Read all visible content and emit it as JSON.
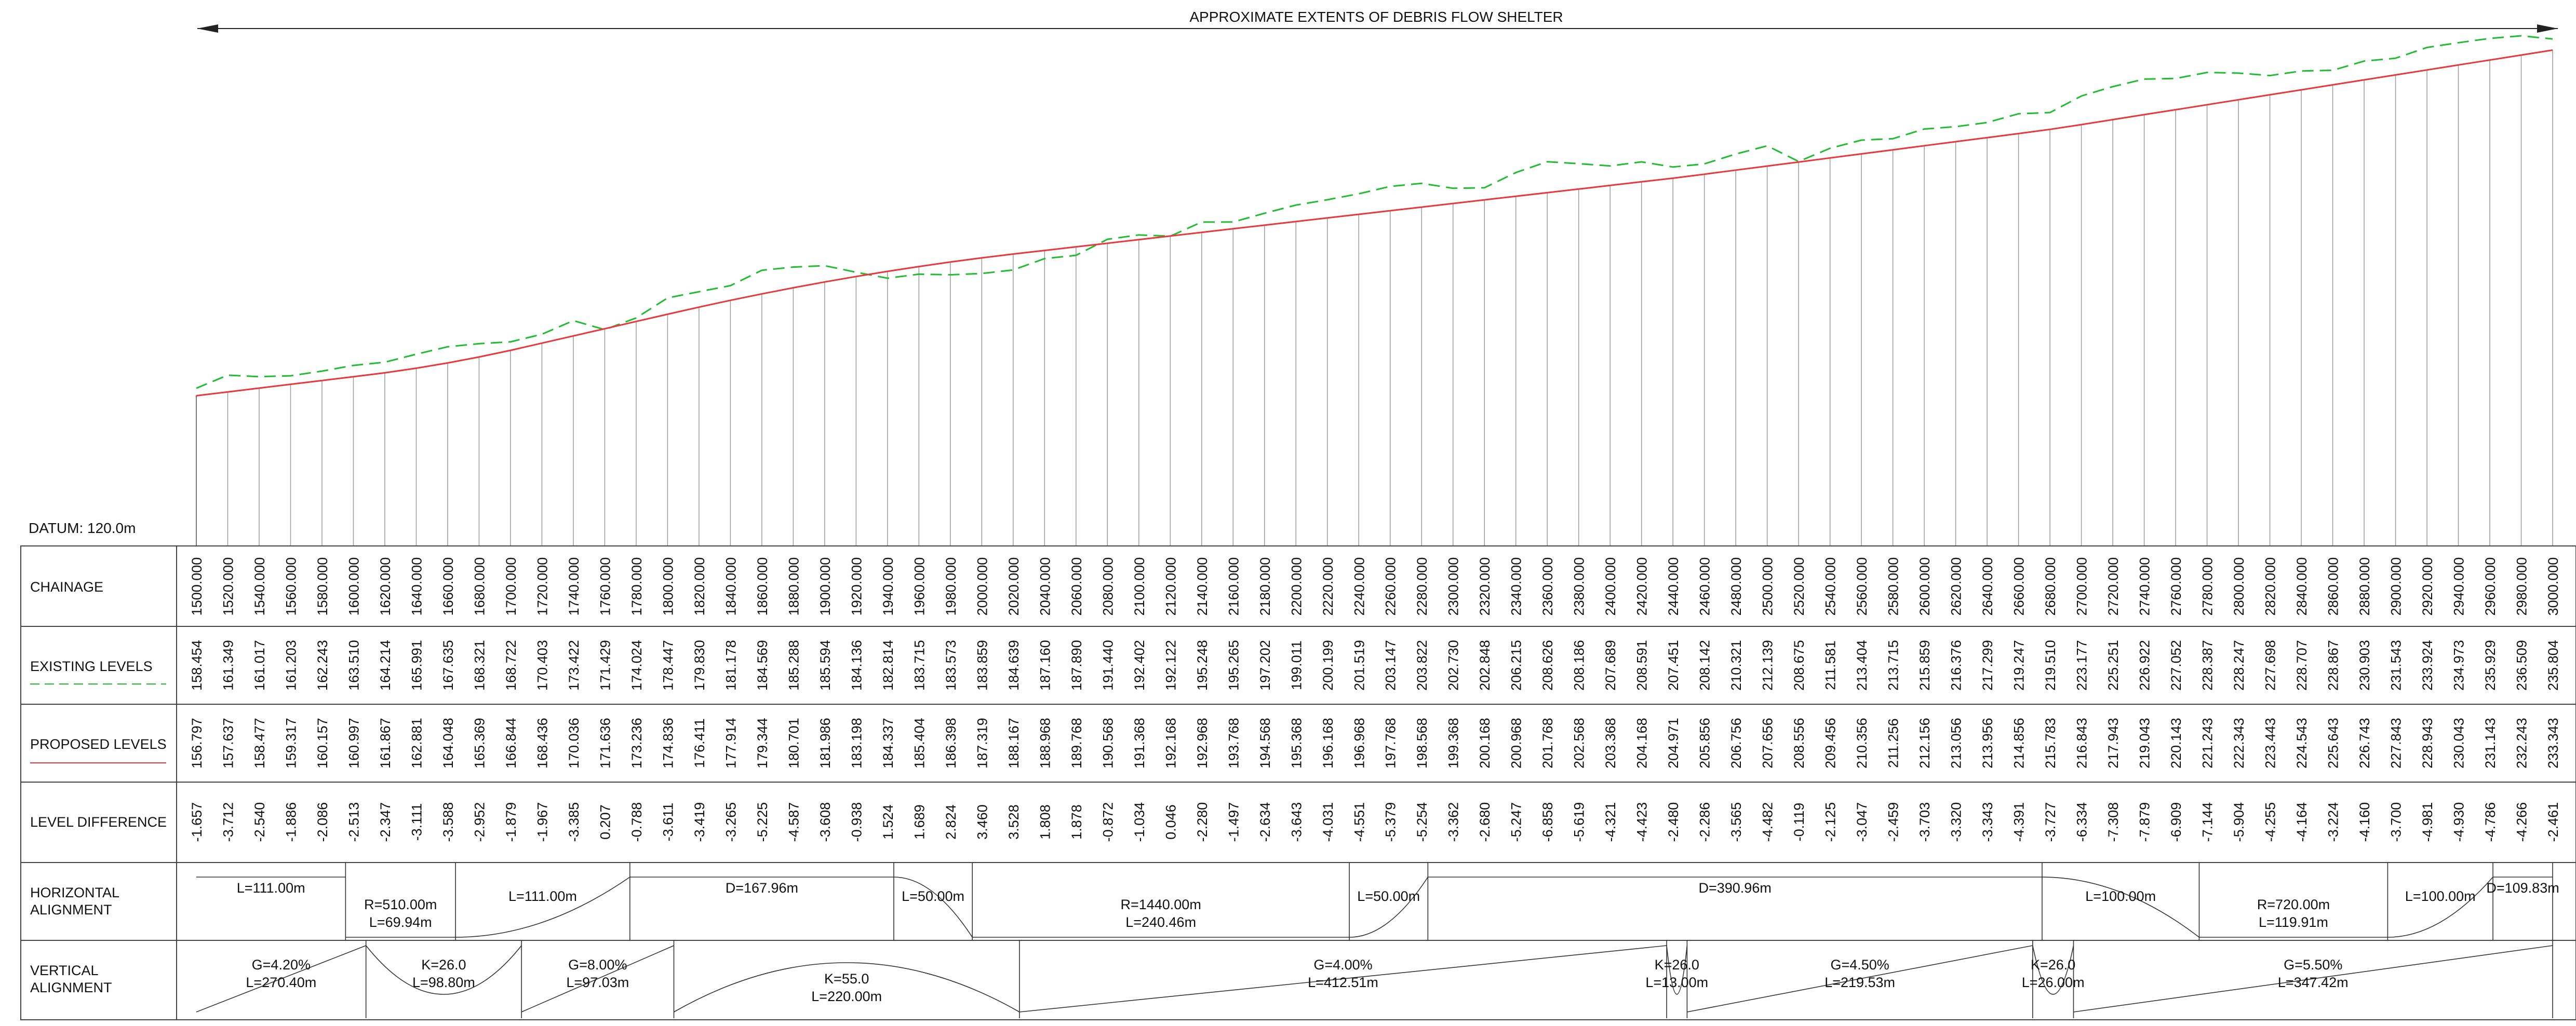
{
  "title": "APPROXIMATE EXTENTS OF DEBRIS FLOW SHELTER",
  "datum": "DATUM: 120.0m",
  "colors": {
    "existing": "#22bb33",
    "proposed": "#e8383d",
    "frame": "#444444"
  },
  "row_labels": {
    "chainage": "CHAINAGE",
    "existing": "EXISTING LEVELS",
    "proposed": "PROPOSED LEVELS",
    "difference": "LEVEL DIFFERENCE",
    "horizontal": [
      "HORIZONTAL",
      "ALIGNMENT"
    ],
    "vertical": [
      "VERTICAL",
      "ALIGNMENT"
    ]
  },
  "chart_data": {
    "type": "line",
    "x_unit": "chainage (m)",
    "y_unit": "level (m)",
    "ylim": [
      120,
      245
    ],
    "chainage": [
      "1500.000",
      "1520.000",
      "1540.000",
      "1560.000",
      "1580.000",
      "1600.000",
      "1620.000",
      "1640.000",
      "1660.000",
      "1680.000",
      "1700.000",
      "1720.000",
      "1740.000",
      "1760.000",
      "1780.000",
      "1800.000",
      "1820.000",
      "1840.000",
      "1860.000",
      "1880.000",
      "1900.000",
      "1920.000",
      "1940.000",
      "1960.000",
      "1980.000",
      "2000.000",
      "2020.000",
      "2040.000",
      "2060.000",
      "2080.000",
      "2100.000",
      "2120.000",
      "2140.000",
      "2160.000",
      "2180.000",
      "2200.000",
      "2220.000",
      "2240.000",
      "2260.000",
      "2280.000",
      "2300.000",
      "2320.000",
      "2340.000",
      "2360.000",
      "2380.000",
      "2400.000",
      "2420.000",
      "2440.000",
      "2460.000",
      "2480.000",
      "2500.000",
      "2520.000",
      "2540.000",
      "2560.000",
      "2580.000",
      "2600.000",
      "2620.000",
      "2640.000",
      "2660.000",
      "2680.000",
      "2700.000",
      "2720.000",
      "2740.000",
      "2760.000",
      "2780.000",
      "2800.000",
      "2820.000",
      "2840.000",
      "2860.000",
      "2880.000",
      "2900.000",
      "2920.000",
      "2940.000",
      "2960.000",
      "2980.000",
      "3000.000"
    ],
    "series": [
      {
        "key": "existing",
        "values": [
          "158.454",
          "161.349",
          "161.017",
          "161.203",
          "162.243",
          "163.510",
          "164.214",
          "165.991",
          "167.635",
          "168.321",
          "168.722",
          "170.403",
          "173.422",
          "171.429",
          "174.024",
          "178.447",
          "179.830",
          "181.178",
          "184.569",
          "185.288",
          "185.594",
          "184.136",
          "182.814",
          "183.715",
          "183.573",
          "183.859",
          "184.639",
          "187.160",
          "187.890",
          "191.440",
          "192.402",
          "192.122",
          "195.248",
          "195.265",
          "197.202",
          "199.011",
          "200.199",
          "201.519",
          "203.147",
          "203.822",
          "202.730",
          "202.848",
          "206.215",
          "208.626",
          "208.186",
          "207.689",
          "208.591",
          "207.451",
          "208.142",
          "210.321",
          "212.139",
          "208.675",
          "211.581",
          "213.404",
          "213.715",
          "215.859",
          "216.376",
          "217.299",
          "219.247",
          "219.510",
          "223.177",
          "225.251",
          "226.922",
          "227.052",
          "228.387",
          "228.247",
          "227.698",
          "228.707",
          "228.867",
          "230.903",
          "231.543",
          "233.924",
          "234.973",
          "235.929",
          "236.509",
          "235.804"
        ]
      },
      {
        "key": "proposed",
        "values": [
          "156.797",
          "157.637",
          "158.477",
          "159.317",
          "160.157",
          "160.997",
          "161.867",
          "162.881",
          "164.048",
          "165.369",
          "166.844",
          "168.436",
          "170.036",
          "171.636",
          "173.236",
          "174.836",
          "176.411",
          "177.914",
          "179.344",
          "180.701",
          "181.986",
          "183.198",
          "184.337",
          "185.404",
          "186.398",
          "187.319",
          "188.167",
          "188.968",
          "189.768",
          "190.568",
          "191.368",
          "192.168",
          "192.968",
          "193.768",
          "194.568",
          "195.368",
          "196.168",
          "196.968",
          "197.768",
          "198.568",
          "199.368",
          "200.168",
          "200.968",
          "201.768",
          "202.568",
          "203.368",
          "204.168",
          "204.971",
          "205.856",
          "206.756",
          "207.656",
          "208.556",
          "209.456",
          "210.356",
          "211.256",
          "212.156",
          "213.056",
          "213.956",
          "214.856",
          "215.783",
          "216.843",
          "217.943",
          "219.043",
          "220.143",
          "221.243",
          "222.343",
          "223.443",
          "224.543",
          "225.643",
          "226.743",
          "227.843",
          "228.943",
          "230.043",
          "231.143",
          "232.243",
          "233.343"
        ]
      }
    ],
    "difference": [
      "-1.657",
      "-3.712",
      "-2.540",
      "-1.886",
      "-2.086",
      "-2.513",
      "-2.347",
      "-3.111",
      "-3.588",
      "-2.952",
      "-1.879",
      "-1.967",
      "-3.385",
      "0.207",
      "-0.788",
      "-3.611",
      "-3.419",
      "-3.265",
      "-5.225",
      "-4.587",
      "-3.608",
      "-0.938",
      "1.524",
      "1.689",
      "2.824",
      "3.460",
      "3.528",
      "1.808",
      "1.878",
      "-0.872",
      "-1.034",
      "0.046",
      "-2.280",
      "-1.497",
      "-2.634",
      "-3.643",
      "-4.031",
      "-4.551",
      "-5.379",
      "-5.254",
      "-3.362",
      "-2.680",
      "-5.247",
      "-6.858",
      "-5.619",
      "-4.321",
      "-4.423",
      "-2.480",
      "-2.286",
      "-3.565",
      "-4.482",
      "-0.119",
      "-2.125",
      "-3.047",
      "-2.459",
      "-3.703",
      "-3.320",
      "-3.343",
      "-4.391",
      "-3.727",
      "-6.334",
      "-7.308",
      "-7.879",
      "-6.909",
      "-7.144",
      "-5.904",
      "-4.255",
      "-4.164",
      "-3.224",
      "-4.160",
      "-3.700",
      "-4.981",
      "-4.930",
      "-4.786",
      "-4.266",
      "-2.461"
    ]
  },
  "horizontal_alignment": [
    {
      "text": [
        "L=111.00m"
      ],
      "from": 1500,
      "to": 1595,
      "shape": "up"
    },
    {
      "text": [
        "R=510.00m",
        "L=69.94m"
      ],
      "from": 1595,
      "to": 1665,
      "shape": "down"
    },
    {
      "text": [
        "L=111.00m"
      ],
      "from": 1665,
      "to": 1776,
      "shape": "trans-up"
    },
    {
      "text": [
        "D=167.96m"
      ],
      "from": 1776,
      "to": 1944,
      "shape": "up"
    },
    {
      "text": [
        "L=50.00m"
      ],
      "from": 1944,
      "to": 1994,
      "shape": "trans-down"
    },
    {
      "text": [
        "R=1440.00m",
        "L=240.46m"
      ],
      "from": 1994,
      "to": 2234,
      "shape": "down"
    },
    {
      "text": [
        "L=50.00m"
      ],
      "from": 2234,
      "to": 2284,
      "shape": "trans-up"
    },
    {
      "text": [
        "D=390.96m"
      ],
      "from": 2284,
      "to": 2675,
      "shape": "up"
    },
    {
      "text": [
        "L=100.00m"
      ],
      "from": 2675,
      "to": 2775,
      "shape": "trans-down"
    },
    {
      "text": [
        "R=720.00m",
        "L=119.91m"
      ],
      "from": 2775,
      "to": 2895,
      "shape": "down"
    },
    {
      "text": [
        "L=100.00m"
      ],
      "from": 2895,
      "to": 2962,
      "shape": "trans-up"
    },
    {
      "text": [
        "D=109.83m"
      ],
      "from": 2962,
      "to": 3000,
      "shape": "up"
    }
  ],
  "vertical_alignment": [
    {
      "text": [
        "G=4.20%",
        "L=270.40m"
      ],
      "from": 1500,
      "to": 1608,
      "shape": "grade"
    },
    {
      "text": [
        "K=26.0",
        "L=98.80m"
      ],
      "from": 1608,
      "to": 1707,
      "shape": "sag"
    },
    {
      "text": [
        "G=8.00%",
        "L=97.03m"
      ],
      "from": 1707,
      "to": 1804,
      "shape": "grade"
    },
    {
      "text": [
        "K=55.0",
        "L=220.00m"
      ],
      "from": 1804,
      "to": 2024,
      "shape": "crest"
    },
    {
      "text": [
        "G=4.00%",
        "L=412.51m"
      ],
      "from": 2024,
      "to": 2436,
      "shape": "grade"
    },
    {
      "text": [
        "K=26.0",
        "L=13.00m"
      ],
      "from": 2436,
      "to": 2449,
      "shape": "sag"
    },
    {
      "text": [
        "G=4.50%",
        "L=219.53m"
      ],
      "from": 2449,
      "to": 2669,
      "shape": "grade"
    },
    {
      "text": [
        "K=26.0",
        "L=26.00m"
      ],
      "from": 2669,
      "to": 2695,
      "shape": "sag"
    },
    {
      "text": [
        "G=5.50%",
        "L=347.42m"
      ],
      "from": 2695,
      "to": 3000,
      "shape": "grade"
    }
  ]
}
